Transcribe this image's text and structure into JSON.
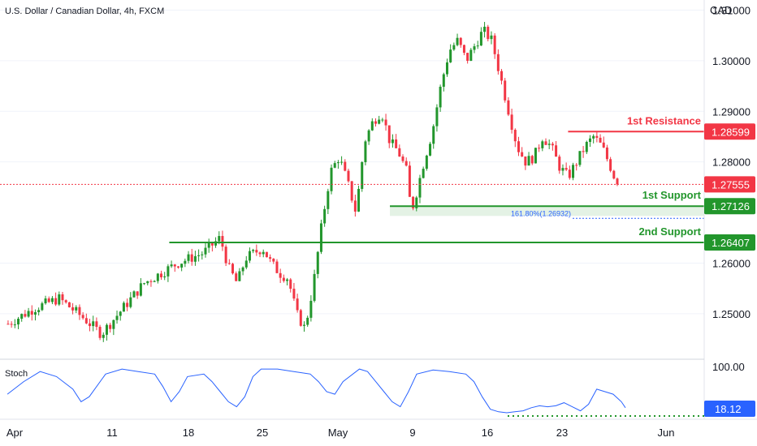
{
  "header": {
    "title": "U.S. Dollar / Canadian Dollar, 4h, FXCM",
    "currency": "CAD"
  },
  "chart_data": {
    "type": "candlestick",
    "title": "U.S. Dollar / Canadian Dollar, 4h, FXCM",
    "ylabel": "CAD",
    "ylim": [
      1.241,
      1.312
    ],
    "y_ticks": [
      {
        "value": 1.31,
        "label": "1.31000"
      },
      {
        "value": 1.3,
        "label": "1.30000"
      },
      {
        "value": 1.29,
        "label": "1.29000"
      },
      {
        "value": 1.28,
        "label": "1.28000"
      },
      {
        "value": 1.26,
        "label": "1.26000"
      },
      {
        "value": 1.25,
        "label": "1.25000"
      }
    ],
    "x_ticks": [
      "Apr",
      "11",
      "18",
      "25",
      "May",
      "9",
      "16",
      "23",
      "Jun"
    ],
    "current_price": {
      "value": 1.27555,
      "label": "1.27555",
      "color": "#f23645"
    },
    "levels": [
      {
        "name": "1st Resistance",
        "value": 1.28599,
        "label": "1.28599",
        "color": "#f23645"
      },
      {
        "name": "1st Support",
        "value": 1.27126,
        "label": "1.27126",
        "color": "#22962c"
      },
      {
        "name": "2nd Support",
        "value": 1.26407,
        "label": "1.26407",
        "color": "#22962c"
      }
    ],
    "fib": {
      "label": "161.80%(1.26932)",
      "value": 1.26932,
      "color": "#2962ff"
    },
    "price_path": [
      [
        0,
        1.248
      ],
      [
        3,
        1.251
      ],
      [
        6,
        1.253
      ],
      [
        9,
        1.249
      ],
      [
        11,
        1.246
      ],
      [
        13,
        1.25
      ],
      [
        16,
        1.256
      ],
      [
        20,
        1.26
      ],
      [
        23,
        1.262
      ],
      [
        25,
        1.265
      ],
      [
        26,
        1.259
      ],
      [
        27,
        1.256
      ],
      [
        28,
        1.261
      ],
      [
        30,
        1.263
      ],
      [
        31,
        1.26
      ],
      [
        32,
        1.258
      ],
      [
        33,
        1.257
      ],
      [
        34,
        1.25
      ],
      [
        35,
        1.247
      ],
      [
        36,
        1.256
      ],
      [
        37,
        1.268
      ],
      [
        38,
        1.278
      ],
      [
        39,
        1.281
      ],
      [
        40,
        1.276
      ],
      [
        41,
        1.27
      ],
      [
        42,
        1.284
      ],
      [
        43,
        1.288
      ],
      [
        44,
        1.29
      ],
      [
        45,
        1.284
      ],
      [
        46,
        1.282
      ],
      [
        47,
        1.278
      ],
      [
        47.5,
        1.27
      ],
      [
        48,
        1.273
      ],
      [
        49,
        1.28
      ],
      [
        50,
        1.286
      ],
      [
        51,
        1.295
      ],
      [
        52,
        1.302
      ],
      [
        53,
        1.304
      ],
      [
        54,
        1.3
      ],
      [
        55,
        1.303
      ],
      [
        56,
        1.306
      ],
      [
        57,
        1.304
      ],
      [
        58,
        1.297
      ],
      [
        59,
        1.29
      ],
      [
        60,
        1.283
      ],
      [
        61,
        1.28
      ],
      [
        62,
        1.281
      ],
      [
        63,
        1.285
      ],
      [
        64,
        1.283
      ],
      [
        65,
        1.279
      ],
      [
        66,
        1.277
      ],
      [
        67,
        1.28
      ],
      [
        68,
        1.283
      ],
      [
        69,
        1.285
      ],
      [
        70,
        1.283
      ],
      [
        71,
        1.279
      ],
      [
        71.8,
        1.27555
      ]
    ],
    "stoch": {
      "label": "Stoch",
      "ylim": [
        0,
        100
      ],
      "ticks": [
        {
          "value": 100,
          "label": "100.00"
        }
      ],
      "current": {
        "value": 18.12,
        "label": "18.12"
      },
      "color": "#2962ff",
      "values": [
        [
          0,
          45
        ],
        [
          2,
          70
        ],
        [
          4,
          90
        ],
        [
          6,
          80
        ],
        [
          8,
          55
        ],
        [
          9,
          30
        ],
        [
          10,
          40
        ],
        [
          12,
          85
        ],
        [
          14,
          95
        ],
        [
          16,
          90
        ],
        [
          18,
          85
        ],
        [
          19,
          60
        ],
        [
          20,
          30
        ],
        [
          21,
          50
        ],
        [
          22,
          80
        ],
        [
          24,
          85
        ],
        [
          25,
          70
        ],
        [
          26,
          50
        ],
        [
          27,
          30
        ],
        [
          28,
          20
        ],
        [
          29,
          40
        ],
        [
          30,
          80
        ],
        [
          31,
          95
        ],
        [
          33,
          95
        ],
        [
          35,
          90
        ],
        [
          37,
          85
        ],
        [
          38,
          70
        ],
        [
          39,
          50
        ],
        [
          40,
          45
        ],
        [
          41,
          70
        ],
        [
          43,
          95
        ],
        [
          44,
          90
        ],
        [
          45,
          70
        ],
        [
          46,
          50
        ],
        [
          47,
          30
        ],
        [
          48,
          20
        ],
        [
          49,
          50
        ],
        [
          50,
          85
        ],
        [
          52,
          93
        ],
        [
          54,
          90
        ],
        [
          56,
          85
        ],
        [
          57,
          70
        ],
        [
          58,
          40
        ],
        [
          59,
          15
        ],
        [
          60,
          10
        ],
        [
          61,
          8
        ],
        [
          62,
          10
        ],
        [
          63,
          12
        ],
        [
          64,
          18
        ],
        [
          65,
          22
        ],
        [
          66,
          20
        ],
        [
          67,
          22
        ],
        [
          68,
          28
        ],
        [
          69,
          20
        ],
        [
          70,
          12
        ],
        [
          71,
          25
        ],
        [
          72,
          55
        ],
        [
          73,
          50
        ],
        [
          74,
          45
        ],
        [
          75,
          30
        ],
        [
          75.5,
          18.12
        ]
      ]
    }
  }
}
